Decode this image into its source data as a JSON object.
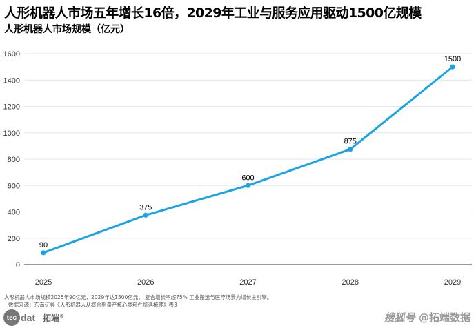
{
  "header": {
    "title": "人形机器人市场五年增长16倍，2029年工业与服务应用驱动1500亿规模",
    "subtitle": "人形机器人市场规模（亿元）"
  },
  "footer": {
    "note": "人形机器人市场规模2025年90亿元，2029年达1500亿元，   复合增长率超75%  工业搬运与医疗场景为增长主引擎。",
    "source": "数据来源：东海证券《人形机器人从概念到量产核心零部件机遇梳理》表3",
    "logo_icon_text": "tec",
    "logo_text": "dat",
    "logo_cn": "拓端",
    "logo_mark": "®",
    "watermark_a": "搜狐号",
    "watermark_b": "@拓端数据"
  },
  "chart_data": {
    "type": "line",
    "title": "人形机器人市场五年增长16倍，2029年工业与服务应用驱动1500亿规模",
    "subtitle": "人形机器人市场规模（亿元）",
    "x": [
      "2025",
      "2026",
      "2027",
      "2028",
      "2029"
    ],
    "series": [
      {
        "values": [
          90,
          375,
          600,
          875,
          1500
        ],
        "color": "#1ba3e3"
      }
    ],
    "ylim": [
      0,
      1600
    ],
    "yticks": [
      0,
      200,
      400,
      600,
      800,
      1000,
      1200,
      1400,
      1600
    ],
    "grid": true,
    "legend": "none",
    "data_labels": [
      "90",
      "375",
      "600",
      "875",
      "1500"
    ]
  }
}
